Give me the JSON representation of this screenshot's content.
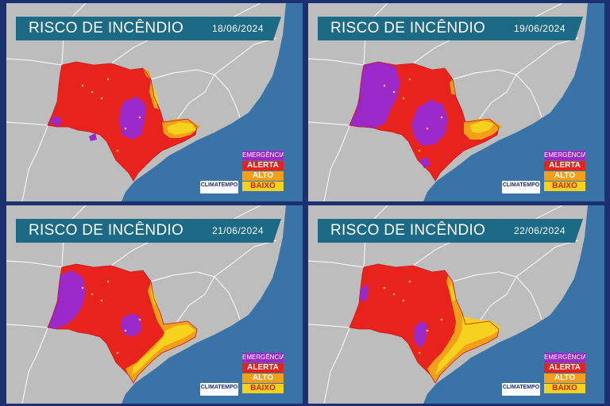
{
  "panels": [
    {
      "title": "RISCO DE INCÊNDIO",
      "date": "18/06/2024",
      "variant": 0
    },
    {
      "title": "RISCO DE INCÊNDIO",
      "date": "19/06/2024",
      "variant": 1
    },
    {
      "title": "RISCO DE INCÊNDIO",
      "date": "21/06/2024",
      "variant": 2
    },
    {
      "title": "RISCO DE INCÊNDIO",
      "date": "22/06/2024",
      "variant": 3
    }
  ],
  "legend": [
    {
      "label": "EMERGÊNCIA",
      "color": "#9b28c8",
      "text_color": "#ffffff"
    },
    {
      "label": "ALERTA",
      "color": "#e8231e",
      "text_color": "#ffffff"
    },
    {
      "label": "ALTO",
      "color": "#f2a01a",
      "text_color": "#ffffff"
    },
    {
      "label": "BAIXO",
      "color": "#f6d21e",
      "text_color": "#d0251a"
    }
  ],
  "logo": {
    "name": "CLIMATEMPO"
  },
  "colors": {
    "ocean": "#3a73a8",
    "land": "#bdbdbd",
    "border": "#f2f2f2",
    "banner": "#1d6a86",
    "background": "#1c2f6e"
  }
}
